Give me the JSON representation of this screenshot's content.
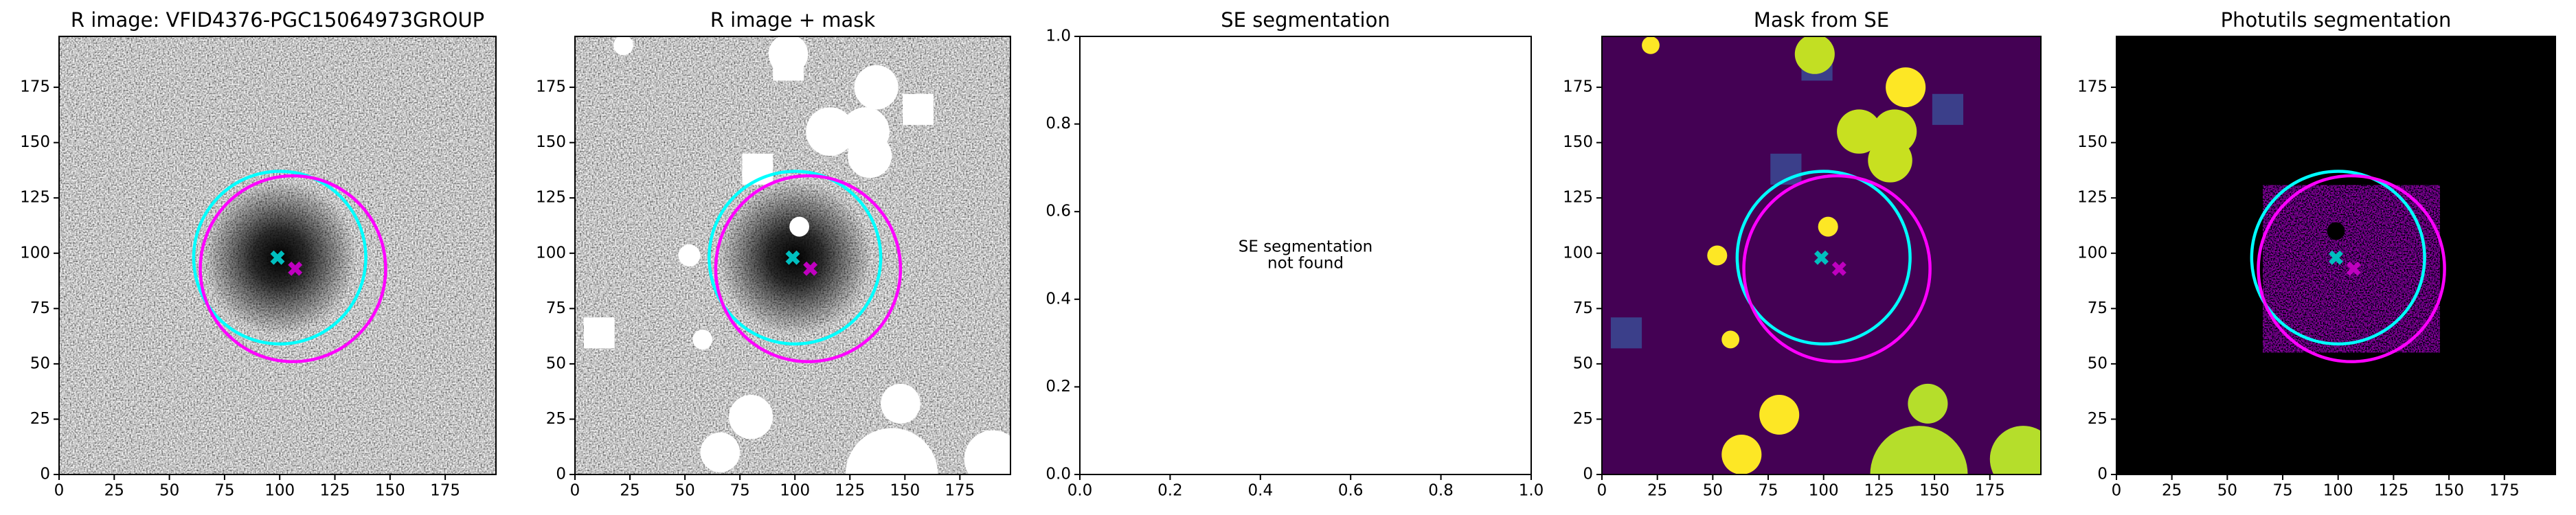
{
  "chart_data": [
    {
      "type": "image",
      "title": "R image: VFID4376-PGC15064973GROUP",
      "background": "noise",
      "xlim": [
        0,
        198
      ],
      "ylim": [
        0,
        198
      ],
      "xticks": [
        0,
        25,
        50,
        75,
        100,
        125,
        150,
        175
      ],
      "yticks": [
        0,
        25,
        50,
        75,
        100,
        125,
        150,
        175
      ],
      "ellipses": [
        {
          "x": 100,
          "y": 98,
          "r": 39,
          "color": "#00ffff"
        },
        {
          "x": 106,
          "y": 93,
          "r": 42,
          "color": "#ff00ff"
        }
      ],
      "points": {
        "x": [
          99,
          107
        ],
        "y": [
          98,
          93
        ],
        "colors": [
          "#00bfbf",
          "#bf00bf"
        ]
      }
    },
    {
      "type": "image",
      "title": "R image + mask",
      "background": "noise",
      "xlim": [
        0,
        198
      ],
      "ylim": [
        0,
        198
      ],
      "xticks": [
        0,
        25,
        50,
        75,
        100,
        125,
        150,
        175
      ],
      "yticks": [
        0,
        25,
        50,
        75,
        100,
        125,
        150,
        175
      ],
      "regions": [
        {
          "x": 22,
          "y": 194,
          "r": 4.5,
          "color": "#ffffff"
        },
        {
          "x": 97,
          "y": 190,
          "r": 9,
          "color": "#ffffff"
        },
        {
          "x": 137,
          "y": 175,
          "r": 10,
          "color": "#ffffff"
        },
        {
          "x": 116,
          "y": 155,
          "r": 11,
          "color": "#ffffff"
        },
        {
          "x": 132,
          "y": 155,
          "r": 11,
          "color": "#ffffff"
        },
        {
          "x": 134,
          "y": 144,
          "r": 10,
          "color": "#ffffff"
        },
        {
          "x": 102,
          "y": 112,
          "r": 4.5,
          "color": "#ffffff"
        },
        {
          "x": 52,
          "y": 99,
          "r": 5,
          "color": "#ffffff"
        },
        {
          "x": 58,
          "y": 61,
          "r": 4.5,
          "color": "#ffffff"
        },
        {
          "x": 80,
          "y": 26,
          "r": 10,
          "color": "#ffffff"
        },
        {
          "x": 148,
          "y": 32,
          "r": 9,
          "color": "#ffffff"
        },
        {
          "x": 144,
          "y": 0,
          "r": 21,
          "color": "#ffffff"
        },
        {
          "x": 190,
          "y": 7,
          "r": 13,
          "color": "#ffffff"
        },
        {
          "x": 66,
          "y": 10,
          "r": 9,
          "color": "#ffffff"
        }
      ],
      "boxes": [
        {
          "x": 97,
          "y": 185,
          "s": 14,
          "color": "#ffffff"
        },
        {
          "x": 156,
          "y": 165,
          "s": 14,
          "color": "#ffffff"
        },
        {
          "x": 83,
          "y": 138,
          "s": 14,
          "color": "#ffffff"
        },
        {
          "x": 11,
          "y": 64,
          "s": 14,
          "color": "#ffffff"
        }
      ],
      "ellipses": [
        {
          "x": 100,
          "y": 98,
          "r": 39,
          "color": "#00ffff"
        },
        {
          "x": 106,
          "y": 93,
          "r": 42,
          "color": "#ff00ff"
        }
      ],
      "points": {
        "x": [
          99,
          107
        ],
        "y": [
          98,
          93
        ],
        "colors": [
          "#00bfbf",
          "#bf00bf"
        ]
      }
    },
    {
      "type": "text",
      "title": "SE segmentation",
      "background": "#ffffff",
      "xlim": [
        0,
        1
      ],
      "ylim": [
        0,
        1
      ],
      "xticks": [
        {
          "value": 0,
          "label": "0.0"
        },
        {
          "value": 0.2,
          "label": "0.2"
        },
        {
          "value": 0.4,
          "label": "0.4"
        },
        {
          "value": 0.6,
          "label": "0.6"
        },
        {
          "value": 0.8,
          "label": "0.8"
        },
        {
          "value": 1,
          "label": "1.0"
        }
      ],
      "yticks": [
        {
          "value": 0,
          "label": "0.0"
        },
        {
          "value": 0.2,
          "label": "0.2"
        },
        {
          "value": 0.4,
          "label": "0.4"
        },
        {
          "value": 0.6,
          "label": "0.6"
        },
        {
          "value": 0.8,
          "label": "0.8"
        },
        {
          "value": 1,
          "label": "1.0"
        }
      ],
      "annotation": [
        "SE segmentation",
        "not found"
      ]
    },
    {
      "type": "image",
      "title": "Mask from SE",
      "background": "#440154",
      "xlim": [
        0,
        198
      ],
      "ylim": [
        0,
        198
      ],
      "xticks": [
        0,
        25,
        50,
        75,
        100,
        125,
        150,
        175
      ],
      "yticks": [
        0,
        25,
        50,
        75,
        100,
        125,
        150,
        175
      ],
      "boxes": [
        {
          "x": 97,
          "y": 185,
          "s": 14,
          "color": "#3b3f8a"
        },
        {
          "x": 156,
          "y": 165,
          "s": 14,
          "color": "#3b3f8a"
        },
        {
          "x": 83,
          "y": 138,
          "s": 14,
          "color": "#3b3f8a"
        },
        {
          "x": 11,
          "y": 64,
          "s": 14,
          "color": "#3b3f8a"
        }
      ],
      "regions": [
        {
          "x": 22,
          "y": 194,
          "r": 4,
          "color": "#fde725"
        },
        {
          "x": 96,
          "y": 190,
          "r": 9,
          "color": "#c2df23"
        },
        {
          "x": 137,
          "y": 175,
          "r": 9,
          "color": "#fde725"
        },
        {
          "x": 116,
          "y": 155,
          "r": 10,
          "color": "#c8e020"
        },
        {
          "x": 132,
          "y": 155,
          "r": 10,
          "color": "#c8e020"
        },
        {
          "x": 130,
          "y": 142,
          "r": 10,
          "color": "#c8e020"
        },
        {
          "x": 102,
          "y": 112,
          "r": 4.5,
          "color": "#fde725"
        },
        {
          "x": 52,
          "y": 99,
          "r": 4.5,
          "color": "#fde725"
        },
        {
          "x": 58,
          "y": 61,
          "r": 4,
          "color": "#fde725"
        },
        {
          "x": 80,
          "y": 27,
          "r": 9,
          "color": "#fde725"
        },
        {
          "x": 147,
          "y": 32,
          "r": 9,
          "color": "#b5de2b"
        },
        {
          "x": 143,
          "y": 0,
          "r": 22,
          "color": "#b5de2b"
        },
        {
          "x": 190,
          "y": 7,
          "r": 15,
          "color": "#b5de2b"
        },
        {
          "x": 63,
          "y": 9,
          "r": 9,
          "color": "#fde725"
        }
      ],
      "ellipses": [
        {
          "x": 100,
          "y": 98,
          "r": 39,
          "color": "#00ffff"
        },
        {
          "x": 106,
          "y": 93,
          "r": 42,
          "color": "#ff00ff"
        }
      ],
      "points": {
        "x": [
          99,
          107
        ],
        "y": [
          98,
          93
        ],
        "colors": [
          "#00bfbf",
          "#bf00bf"
        ]
      }
    },
    {
      "type": "image",
      "title": "Photutils segmentation",
      "background": "#000000",
      "xlim": [
        0,
        198
      ],
      "ylim": [
        0,
        198
      ],
      "xticks": [
        0,
        25,
        50,
        75,
        100,
        125,
        150,
        175
      ],
      "yticks": [
        0,
        25,
        50,
        75,
        100,
        125,
        150,
        175
      ],
      "ellipses": [
        {
          "x": 100,
          "y": 98,
          "r": 39,
          "color": "#00ffff"
        },
        {
          "x": 106,
          "y": 93,
          "r": 42,
          "color": "#ff00ff"
        }
      ],
      "points": {
        "x": [
          99,
          107
        ],
        "y": [
          98,
          93
        ],
        "colors": [
          "#00bfbf",
          "#bf00bf"
        ]
      }
    }
  ]
}
